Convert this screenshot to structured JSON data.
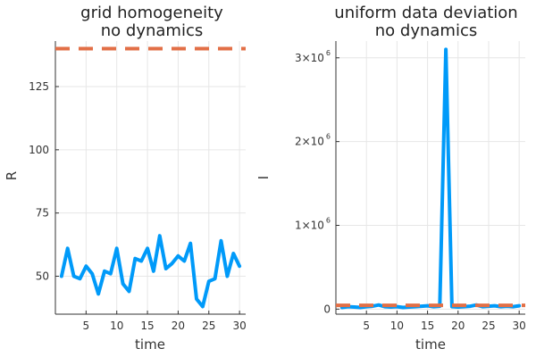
{
  "chart_data": [
    {
      "type": "line",
      "title": [
        "grid homogeneity",
        "no dynamics"
      ],
      "xlabel": "time",
      "ylabel": "R",
      "xlim": [
        0,
        31
      ],
      "ylim": [
        35,
        143
      ],
      "xticks": [
        5,
        10,
        15,
        20,
        25,
        30
      ],
      "xtick_labels": [
        "5",
        "10",
        "15",
        "20",
        "25",
        "30"
      ],
      "yticks": [
        50,
        75,
        100,
        125
      ],
      "ytick_labels": [
        "50",
        "75",
        "100",
        "125"
      ],
      "grid": true,
      "legend": "none",
      "series": [
        {
          "color": "#009af9",
          "style": "solid",
          "x": [
            1,
            2,
            3,
            4,
            5,
            6,
            7,
            8,
            9,
            10,
            11,
            12,
            13,
            14,
            15,
            16,
            17,
            18,
            19,
            20,
            21,
            22,
            23,
            24,
            25,
            26,
            27,
            28,
            29,
            30
          ],
          "values": [
            50,
            61,
            50,
            49,
            54,
            51,
            43,
            52,
            51,
            61,
            47,
            44,
            57,
            56,
            61,
            52,
            66,
            53,
            55,
            58,
            56,
            63,
            41,
            38,
            48,
            49,
            64,
            50,
            59,
            54
          ]
        },
        {
          "color": "#e26f46",
          "style": "dashed",
          "x": [
            0,
            31
          ],
          "values": [
            140,
            140
          ]
        }
      ]
    },
    {
      "type": "line",
      "title": [
        "uniform data deviation",
        "no dynamics"
      ],
      "xlabel": "time",
      "ylabel": "I",
      "xlim": [
        0,
        31
      ],
      "ylim": [
        -60000,
        3200000
      ],
      "xticks": [
        5,
        10,
        15,
        20,
        25,
        30
      ],
      "xtick_labels": [
        "5",
        "10",
        "15",
        "20",
        "25",
        "30"
      ],
      "yticks": [
        0,
        1000000,
        2000000,
        3000000
      ],
      "ytick_labels": [
        {
          "base": "0",
          "exp": ""
        },
        {
          "base": "1×10",
          "exp": "6"
        },
        {
          "base": "2×10",
          "exp": "6"
        },
        {
          "base": "3×10",
          "exp": "6"
        }
      ],
      "grid": true,
      "legend": "none",
      "series": [
        {
          "color": "#009af9",
          "style": "solid",
          "x": [
            1,
            2,
            3,
            4,
            5,
            6,
            7,
            8,
            9,
            10,
            11,
            12,
            13,
            14,
            15,
            16,
            17,
            18,
            19,
            20,
            21,
            22,
            23,
            24,
            25,
            26,
            27,
            28,
            29,
            30
          ],
          "values": [
            20000,
            30000,
            25000,
            20000,
            30000,
            35000,
            50000,
            30000,
            25000,
            30000,
            20000,
            25000,
            30000,
            35000,
            40000,
            30000,
            35000,
            3100000,
            30000,
            25000,
            30000,
            35000,
            50000,
            30000,
            35000,
            40000,
            30000,
            35000,
            30000,
            40000
          ]
        },
        {
          "color": "#e26f46",
          "style": "dashed",
          "x": [
            0,
            31
          ],
          "values": [
            45000,
            45000
          ]
        }
      ]
    }
  ]
}
